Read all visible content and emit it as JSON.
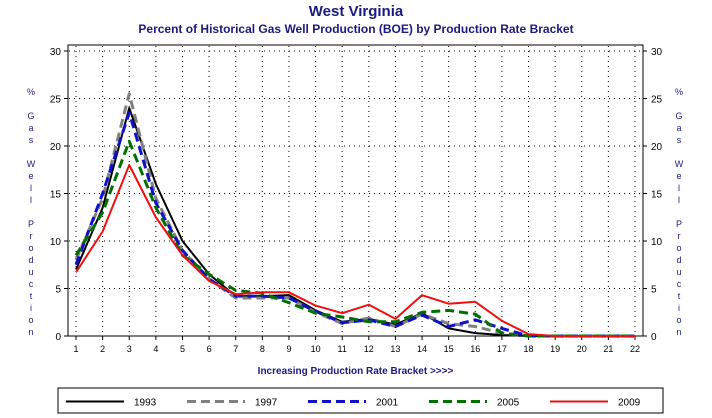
{
  "chart_data": {
    "type": "line",
    "title": "West Virginia",
    "subtitle": "Percent of Historical Gas Well Production (BOE) by Production Rate Bracket",
    "xlabel": "Increasing Production Rate Bracket >>>>",
    "ylabel": "% Gas Well Production",
    "ylim": [
      0,
      30
    ],
    "yticks": [
      0,
      5,
      10,
      15,
      20,
      25,
      30
    ],
    "x": [
      1,
      2,
      3,
      4,
      5,
      6,
      7,
      8,
      9,
      10,
      11,
      12,
      13,
      14,
      15,
      16,
      17,
      18,
      19,
      20,
      21,
      22
    ],
    "grid": "dotted",
    "legend_position": "bottom",
    "series": [
      {
        "name": "1993",
        "color": "#000000",
        "dash": "solid",
        "values": [
          7.0,
          13.5,
          24.0,
          16.0,
          10.0,
          6.5,
          4.2,
          4.2,
          4.3,
          2.7,
          1.5,
          1.8,
          1.2,
          2.4,
          0.8,
          0.3,
          0.1,
          0,
          0,
          0,
          0,
          0
        ]
      },
      {
        "name": "1997",
        "color": "#808080",
        "dash": "long",
        "values": [
          8.0,
          14.5,
          25.5,
          14.5,
          9.0,
          6.0,
          4.0,
          4.0,
          4.0,
          2.5,
          1.3,
          1.9,
          1.0,
          2.3,
          1.3,
          1.0,
          0.3,
          0,
          0,
          0,
          0,
          0
        ]
      },
      {
        "name": "2001",
        "color": "#1010cc",
        "dash": "long",
        "values": [
          7.5,
          15.0,
          23.5,
          14.0,
          9.0,
          6.0,
          4.2,
          4.2,
          4.0,
          2.6,
          1.4,
          1.7,
          1.0,
          2.2,
          1.0,
          1.7,
          0.8,
          0,
          0,
          0,
          0,
          0
        ]
      },
      {
        "name": "2005",
        "color": "#007000",
        "dash": "long",
        "values": [
          8.5,
          13.0,
          20.5,
          13.5,
          8.5,
          6.5,
          4.8,
          4.5,
          3.5,
          2.4,
          2.0,
          1.5,
          1.5,
          2.5,
          2.7,
          2.3,
          0.3,
          0,
          0,
          0,
          0,
          0
        ]
      },
      {
        "name": "2009",
        "color": "#ee1010",
        "dash": "solid",
        "values": [
          6.7,
          11.0,
          18.0,
          12.5,
          8.5,
          5.8,
          4.4,
          4.6,
          4.6,
          3.2,
          2.4,
          3.3,
          1.8,
          4.3,
          3.4,
          3.6,
          1.6,
          0.2,
          0,
          0,
          0,
          0
        ]
      }
    ]
  }
}
